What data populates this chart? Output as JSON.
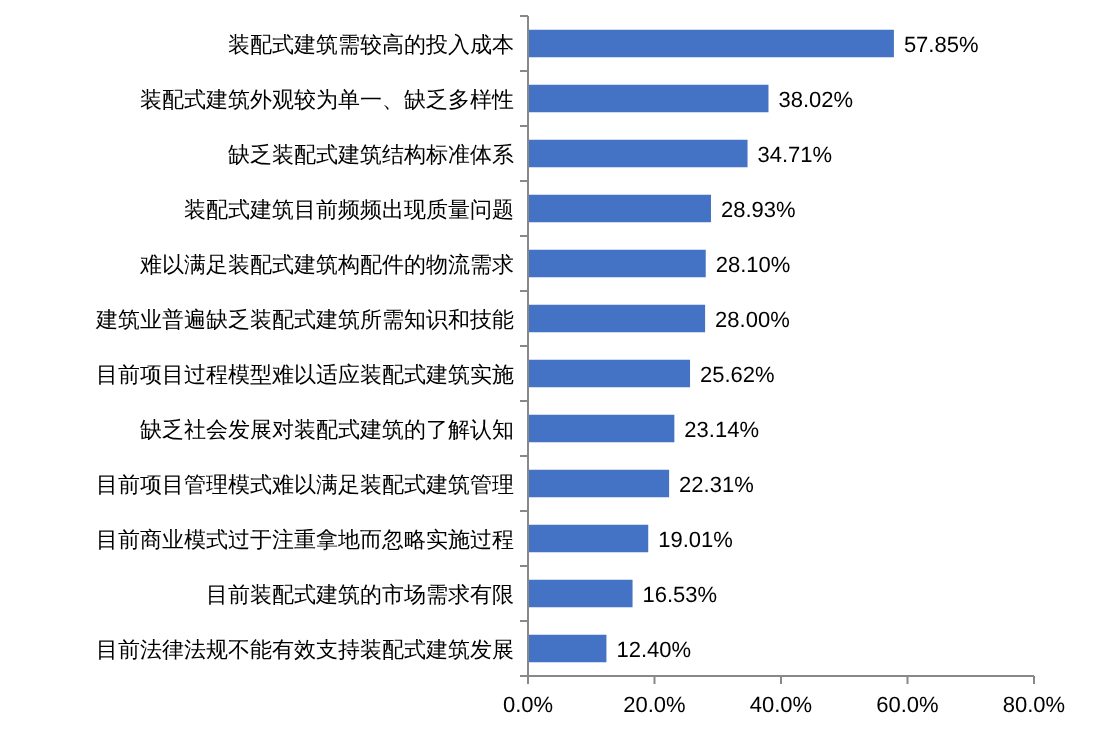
{
  "chart_data": {
    "type": "bar",
    "orientation": "horizontal",
    "categories": [
      "装配式建筑需较高的投入成本",
      "装配式建筑外观较为单一、缺乏多样性",
      "缺乏装配式建筑结构标准体系",
      "装配式建筑目前频频出现质量问题",
      "难以满足装配式建筑构配件的物流需求",
      "建筑业普遍缺乏装配式建筑所需知识和技能",
      "目前项目过程模型难以适应装配式建筑实施",
      "缺乏社会发展对装配式建筑的了解认知",
      "目前项目管理模式难以满足装配式建筑管理",
      "目前商业模式过于注重拿地而忽略实施过程",
      "目前装配式建筑的市场需求有限",
      "目前法律法规不能有效支持装配式建筑发展"
    ],
    "values": [
      57.85,
      38.02,
      34.71,
      28.93,
      28.1,
      28.0,
      25.62,
      23.14,
      22.31,
      19.01,
      16.53,
      12.4
    ],
    "value_labels": [
      "57.85%",
      "38.02%",
      "34.71%",
      "28.93%",
      "28.10%",
      "28.00%",
      "25.62%",
      "23.14%",
      "22.31%",
      "19.01%",
      "16.53%",
      "12.40%"
    ],
    "color": "#4472c4",
    "xlim": [
      0,
      80
    ],
    "xticks": [
      {
        "value": 0,
        "label": "0.0%"
      },
      {
        "value": 20,
        "label": "20.0%"
      },
      {
        "value": 40,
        "label": "40.0%"
      },
      {
        "value": 60,
        "label": "60.0%"
      },
      {
        "value": 80,
        "label": "80.0%"
      }
    ],
    "grid": false
  }
}
